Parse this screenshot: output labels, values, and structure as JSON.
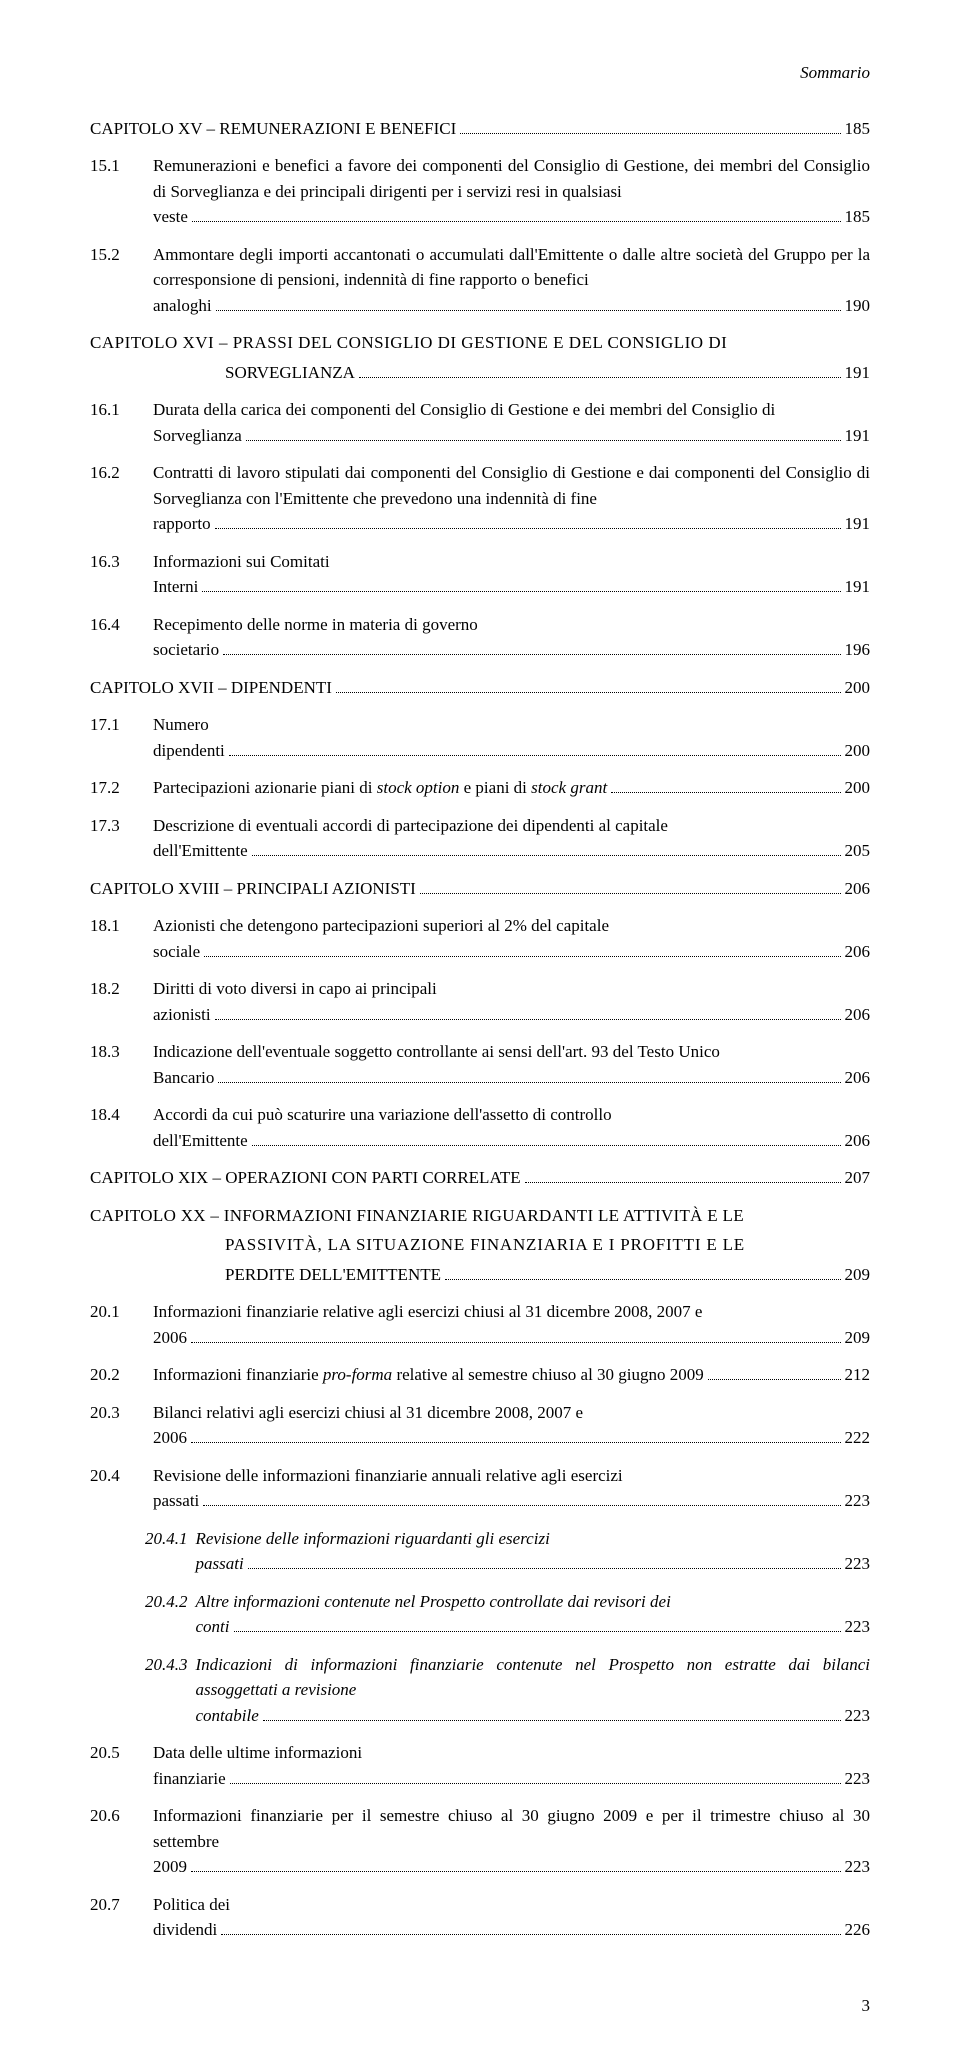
{
  "header": "Sommario",
  "entries": [
    {
      "level": "chapter",
      "num": "",
      "text": "CAPITOLO XV – REMUNERAZIONI E BENEFICI",
      "page": "185"
    },
    {
      "level": "sec",
      "num": "15.1",
      "text": "Remunerazioni e benefici a favore dei componenti del Consiglio di Gestione, dei membri del Consiglio di Sorveglianza e dei principali dirigenti per i servizi resi in qualsiasi veste",
      "page": "185"
    },
    {
      "level": "sec",
      "num": "15.2",
      "text": "Ammontare degli importi accantonati o accumulati dall'Emittente o dalle altre società del Gruppo per la corresponsione di pensioni, indennità di fine rapporto o benefici analoghi",
      "page": "190"
    },
    {
      "level": "chapter-multi",
      "num": "",
      "text": "CAPITOLO XVI – PRASSI DEL CONSIGLIO DI GESTIONE E DEL CONSIGLIO DI",
      "cont": "SORVEGLIANZA",
      "page": "191"
    },
    {
      "level": "sec",
      "num": "16.1",
      "text": "Durata della carica dei componenti del Consiglio di Gestione e dei membri del Consiglio di Sorveglianza",
      "page": "191"
    },
    {
      "level": "sec",
      "num": "16.2",
      "text": "Contratti di lavoro stipulati dai componenti del Consiglio di Gestione e dai componenti del Consiglio di Sorveglianza con l'Emittente che prevedono una indennità di fine rapporto",
      "page": "191"
    },
    {
      "level": "sec",
      "num": "16.3",
      "text": "Informazioni sui Comitati Interni",
      "page": "191"
    },
    {
      "level": "sec",
      "num": "16.4",
      "text": "Recepimento delle norme in materia di governo societario",
      "page": "196"
    },
    {
      "level": "chapter",
      "num": "",
      "text": "CAPITOLO XVII – DIPENDENTI",
      "page": "200"
    },
    {
      "level": "sec",
      "num": "17.1",
      "text": "Numero dipendenti",
      "page": "200"
    },
    {
      "level": "sec-html",
      "num": "17.2",
      "html": "Partecipazioni azionarie piani di <i>stock option</i> e piani di <i>stock grant</i>",
      "page": "200"
    },
    {
      "level": "sec",
      "num": "17.3",
      "text": "Descrizione di eventuali accordi di partecipazione dei dipendenti al capitale dell'Emittente",
      "page": "205"
    },
    {
      "level": "chapter",
      "num": "",
      "text": "CAPITOLO XVIII – PRINCIPALI AZIONISTI",
      "page": "206"
    },
    {
      "level": "sec",
      "num": "18.1",
      "text": "Azionisti che detengono partecipazioni superiori al 2% del capitale sociale",
      "page": "206"
    },
    {
      "level": "sec",
      "num": "18.2",
      "text": "Diritti di voto diversi in capo ai principali azionisti",
      "page": "206"
    },
    {
      "level": "sec",
      "num": "18.3",
      "text": "Indicazione dell'eventuale soggetto controllante ai sensi dell'art. 93 del Testo Unico Bancario",
      "page": "206"
    },
    {
      "level": "sec",
      "num": "18.4",
      "text": "Accordi da cui può scaturire una variazione dell'assetto di controllo dell'Emittente",
      "page": "206"
    },
    {
      "level": "chapter",
      "num": "",
      "text": "CAPITOLO XIX – OPERAZIONI CON PARTI CORRELATE",
      "page": "207"
    },
    {
      "level": "chapter-multi3",
      "num": "",
      "text": "CAPITOLO XX – INFORMAZIONI FINANZIARIE RIGUARDANTI LE ATTIVITÀ E LE",
      "cont1": "PASSIVITÀ, LA SITUAZIONE FINANZIARIA E I PROFITTI E LE",
      "cont2": "PERDITE DELL'EMITTENTE",
      "page": "209"
    },
    {
      "level": "sec",
      "num": "20.1",
      "text": "Informazioni finanziarie relative agli esercizi chiusi al 31 dicembre 2008, 2007 e 2006",
      "page": "209"
    },
    {
      "level": "sec-html",
      "num": "20.2",
      "html": "Informazioni finanziarie <i>pro-forma</i> relative al semestre chiuso al 30 giugno 2009",
      "page": "212"
    },
    {
      "level": "sec",
      "num": "20.3",
      "text": "Bilanci relativi agli esercizi chiusi al 31 dicembre 2008, 2007 e 2006",
      "page": "222"
    },
    {
      "level": "sec",
      "num": "20.4",
      "text": "Revisione delle informazioni finanziarie annuali relative agli esercizi passati",
      "page": "223"
    },
    {
      "level": "sub",
      "num": "20.4.1",
      "text": "Revisione delle informazioni riguardanti gli esercizi passati",
      "page": "223"
    },
    {
      "level": "sub",
      "num": "20.4.2",
      "text": "Altre informazioni contenute nel Prospetto controllate dai revisori dei conti",
      "page": "223"
    },
    {
      "level": "sub",
      "num": "20.4.3",
      "text": "Indicazioni di informazioni finanziarie contenute nel Prospetto non estratte dai bilanci assoggettati a revisione contabile",
      "page": "223"
    },
    {
      "level": "sec",
      "num": "20.5",
      "text": "Data delle ultime informazioni finanziarie",
      "page": "223"
    },
    {
      "level": "sec",
      "num": "20.6",
      "text": "Informazioni finanziarie per il semestre chiuso al 30 giugno 2009 e per il trimestre chiuso al 30 settembre 2009",
      "page": "223"
    },
    {
      "level": "sec",
      "num": "20.7",
      "text": "Politica dei dividendi",
      "page": "226"
    }
  ],
  "footerPage": "3",
  "style": {
    "font": "Times New Roman",
    "bodyFontSize": 17,
    "textColor": "#000000",
    "background": "#ffffff",
    "pageWidth": 960,
    "pageHeight": 1538
  }
}
